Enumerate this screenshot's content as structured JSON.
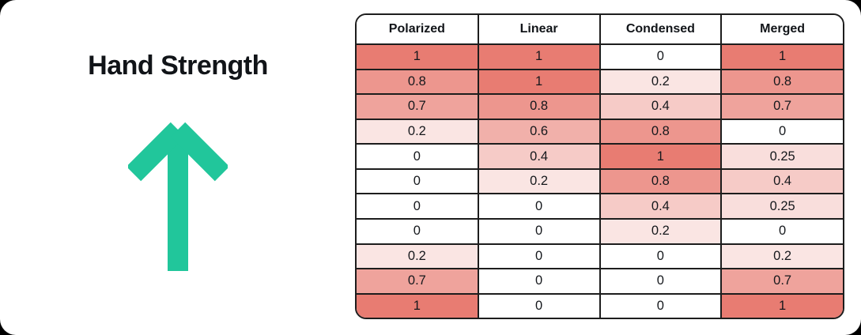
{
  "title": "Hand Strength",
  "arrow": {
    "direction": "up",
    "color": "#21c69b"
  },
  "chart_data": {
    "type": "heatmap",
    "columns": [
      "Polarized",
      "Linear",
      "Condensed",
      "Merged"
    ],
    "rows": [
      [
        1,
        1,
        0,
        1
      ],
      [
        0.8,
        1,
        0.2,
        0.8
      ],
      [
        0.7,
        0.8,
        0.4,
        0.7
      ],
      [
        0.2,
        0.6,
        0.8,
        0
      ],
      [
        0,
        0.4,
        1,
        0.25
      ],
      [
        0,
        0.2,
        0.8,
        0.4
      ],
      [
        0,
        0,
        0.4,
        0.25
      ],
      [
        0,
        0,
        0.2,
        0
      ],
      [
        0.2,
        0,
        0,
        0.2
      ],
      [
        0.7,
        0,
        0,
        0.7
      ],
      [
        1,
        0,
        0,
        1
      ]
    ],
    "value_range": [
      0,
      1
    ],
    "color_scale": {
      "min_color": "#ffffff",
      "max_color": "#e87c72"
    },
    "border_color": "#1d1d1d",
    "legend_position": "none",
    "grid": true
  }
}
